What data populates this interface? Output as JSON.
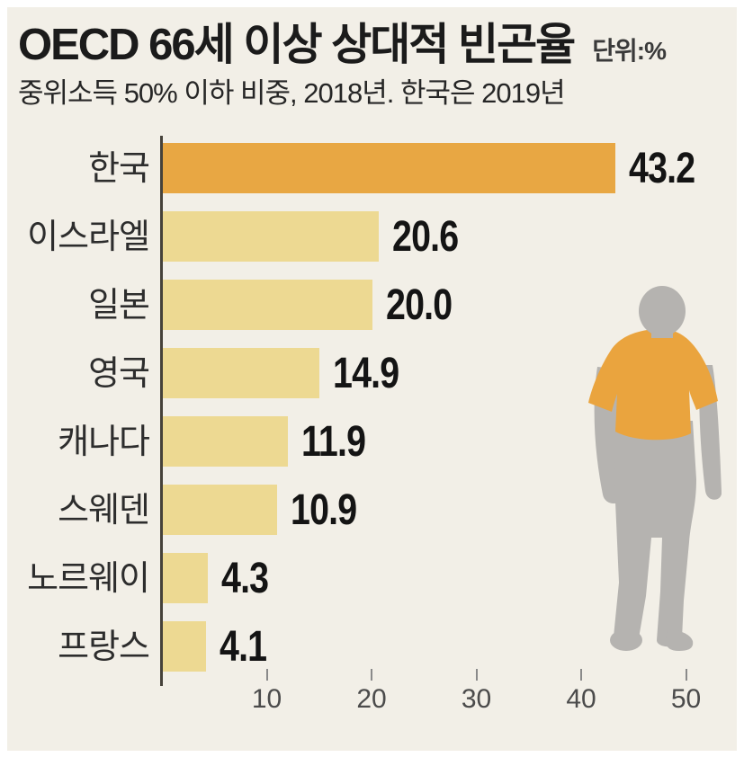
{
  "header": {
    "title": "OECD 66세 이상 상대적 빈곤율",
    "unit_label": "단위:%",
    "subtitle": "중위소득 50% 이하 비중, 2018년. 한국은 2019년"
  },
  "chart_data": {
    "type": "bar",
    "orientation": "horizontal",
    "title": "OECD 66세 이상 상대적 빈곤율",
    "subtitle": "중위소득 50% 이하 비중, 2018년. 한국은 2019년",
    "unit": "단위:%",
    "categories": [
      "한국",
      "이스라엘",
      "일본",
      "영국",
      "캐나다",
      "스웨덴",
      "노르웨이",
      "프랑스"
    ],
    "values": [
      43.2,
      20.6,
      20.0,
      14.9,
      11.9,
      10.9,
      4.3,
      4.1
    ],
    "value_labels": [
      "43.2",
      "20.6",
      "20.0",
      "14.9",
      "11.9",
      "10.9",
      "4.3",
      "4.1"
    ],
    "highlight_index": 0,
    "x_ticks": [
      10,
      20,
      30,
      40,
      50
    ],
    "xlim": [
      0,
      55
    ],
    "xlabel": "",
    "ylabel": "",
    "grid": false,
    "legend": null,
    "colors": {
      "highlight_bar": "#e8a743",
      "default_bar": "#edd992",
      "panel_background": "#f2efe7",
      "axis": "#46423a",
      "silhouette_gray": "#b5b3b0",
      "silhouette_shirt": "#eaa43e"
    }
  },
  "decoration": {
    "silhouette_name": "elderly-man-back-view"
  }
}
